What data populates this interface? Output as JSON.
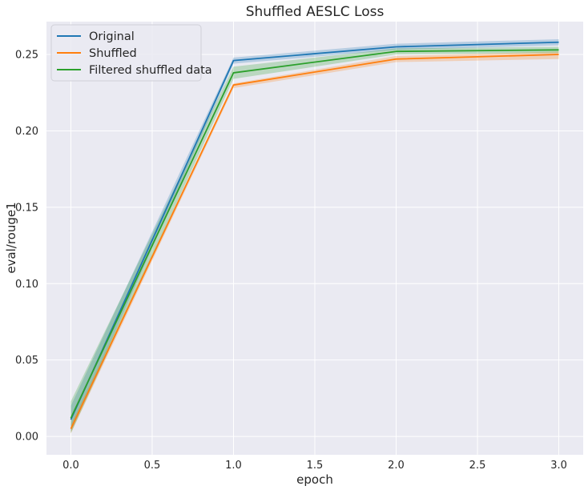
{
  "chart_data": {
    "type": "line",
    "title": "Shuffled AESLC Loss",
    "xlabel": "epoch",
    "ylabel": "eval/rouge1",
    "xlim": [
      -0.15,
      3.15
    ],
    "ylim": [
      -0.012,
      0.2715
    ],
    "xticks": [
      "0.0",
      "0.5",
      "1.0",
      "1.5",
      "2.0",
      "2.5",
      "3.0"
    ],
    "yticks": [
      "0.00",
      "0.05",
      "0.10",
      "0.15",
      "0.20",
      "0.25"
    ],
    "x": [
      0,
      1,
      2,
      3
    ],
    "grid": true,
    "legend_position": "top-left",
    "background": "#eaeaf2",
    "series": [
      {
        "name": "Original",
        "color": "#1f77b4",
        "values": [
          0.011,
          0.246,
          0.255,
          0.258
        ],
        "lower": [
          0.003,
          0.244,
          0.253,
          0.256
        ],
        "upper": [
          0.02,
          0.248,
          0.257,
          0.26
        ]
      },
      {
        "name": "Shuffled",
        "color": "#ff7f0e",
        "values": [
          0.005,
          0.23,
          0.247,
          0.25
        ],
        "lower": [
          0.002,
          0.228,
          0.245,
          0.247
        ],
        "upper": [
          0.008,
          0.231,
          0.249,
          0.252
        ]
      },
      {
        "name": "Filtered shuffled data",
        "color": "#2ca02c",
        "values": [
          0.012,
          0.238,
          0.252,
          0.253
        ],
        "lower": [
          0.002,
          0.234,
          0.25,
          0.251
        ],
        "upper": [
          0.023,
          0.242,
          0.254,
          0.255
        ]
      }
    ]
  }
}
